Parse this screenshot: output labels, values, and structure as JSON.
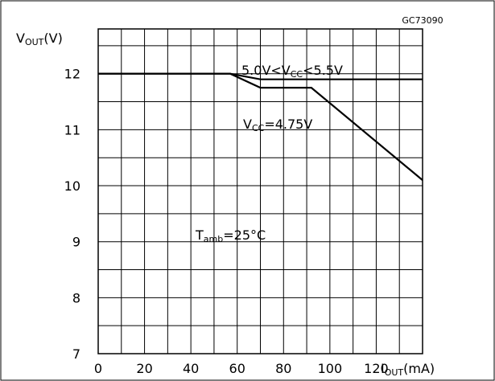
{
  "chart_data": {
    "type": "line",
    "figure_code": "GC73090",
    "ylabel": {
      "main": "V",
      "sub": "OUT",
      "unit": "(V)"
    },
    "xlabel": {
      "main": "I",
      "sub": "OUT",
      "unit": "(mA)"
    },
    "xlim": [
      0,
      140
    ],
    "ylim": [
      7,
      12.8
    ],
    "x_ticks": [
      "0",
      "20",
      "40",
      "60",
      "80",
      "100",
      "120"
    ],
    "y_ticks": [
      "7",
      "8",
      "9",
      "10",
      "11",
      "12"
    ],
    "grid": true,
    "series": [
      {
        "name": "5.0V<VCC<5.5V",
        "label_parts": {
          "a": "5.0V<V",
          "sub": "CC",
          "b": "<5.5V"
        },
        "x": [
          0,
          57,
          70,
          140
        ],
        "y": [
          12,
          12,
          11.9,
          11.9
        ]
      },
      {
        "name": "VCC=4.75V",
        "label_parts": {
          "a": "V",
          "sub": "CC",
          "b": "=4.75V"
        },
        "x": [
          0,
          57,
          70,
          92,
          140
        ],
        "y": [
          12,
          12,
          11.75,
          11.75,
          10.1
        ]
      }
    ],
    "annotations": [
      {
        "main": "T",
        "sub": "amb",
        "rest": "=25°C"
      }
    ]
  }
}
